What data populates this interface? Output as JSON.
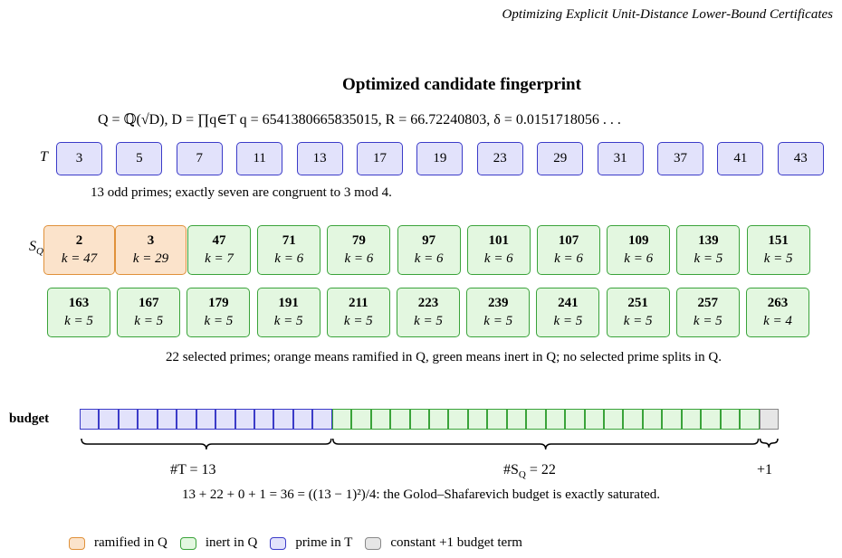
{
  "header": {
    "running_title": "Optimizing Explicit Unit-Distance Lower-Bound Certificates"
  },
  "figure": {
    "title": "Optimized candidate fingerprint",
    "formula": "Q = ℚ(√D), D = ∏q∈T q = 6541380665835015, R = 66.72240803, δ = 0.0151718056 . . .",
    "t_label": "T",
    "t_primes": [
      "3",
      "5",
      "7",
      "11",
      "13",
      "17",
      "19",
      "23",
      "29",
      "31",
      "37",
      "41",
      "43"
    ],
    "t_caption": "13 odd primes; exactly seven are congruent to 3 mod 4.",
    "s_label": {
      "main": "S",
      "sub": "Q"
    },
    "s_rows": [
      [
        {
          "p": "2",
          "k": "k = 47",
          "ramified": true
        },
        {
          "p": "3",
          "k": "k = 29",
          "ramified": true
        },
        {
          "p": "47",
          "k": "k = 7",
          "ramified": false
        },
        {
          "p": "71",
          "k": "k = 6",
          "ramified": false
        },
        {
          "p": "79",
          "k": "k = 6",
          "ramified": false
        },
        {
          "p": "97",
          "k": "k = 6",
          "ramified": false
        },
        {
          "p": "101",
          "k": "k = 6",
          "ramified": false
        },
        {
          "p": "107",
          "k": "k = 6",
          "ramified": false
        },
        {
          "p": "109",
          "k": "k = 6",
          "ramified": false
        },
        {
          "p": "139",
          "k": "k = 5",
          "ramified": false
        },
        {
          "p": "151",
          "k": "k = 5",
          "ramified": false
        }
      ],
      [
        {
          "p": "163",
          "k": "k = 5",
          "ramified": false
        },
        {
          "p": "167",
          "k": "k = 5",
          "ramified": false
        },
        {
          "p": "179",
          "k": "k = 5",
          "ramified": false
        },
        {
          "p": "191",
          "k": "k = 5",
          "ramified": false
        },
        {
          "p": "211",
          "k": "k = 5",
          "ramified": false
        },
        {
          "p": "223",
          "k": "k = 5",
          "ramified": false
        },
        {
          "p": "239",
          "k": "k = 5",
          "ramified": false
        },
        {
          "p": "241",
          "k": "k = 5",
          "ramified": false
        },
        {
          "p": "251",
          "k": "k = 5",
          "ramified": false
        },
        {
          "p": "257",
          "k": "k = 5",
          "ramified": false
        },
        {
          "p": "263",
          "k": "k = 4",
          "ramified": false
        }
      ]
    ],
    "s_caption": "22 selected primes; orange means ramified in Q, green means inert in Q; no selected prime splits in Q.",
    "budget": {
      "label": "budget",
      "t_count": "#T = 13",
      "s_count": [
        "#S",
        "Q",
        " = 22"
      ],
      "const": "+1",
      "equation": "13 + 22 + 0 + 1 = 36 = ((13 − 1)²)/4: the Golod–Shafarevich budget is exactly saturated."
    },
    "legend": [
      "ramified in Q",
      "inert in Q",
      "prime in T",
      "constant +1 budget term"
    ]
  }
}
